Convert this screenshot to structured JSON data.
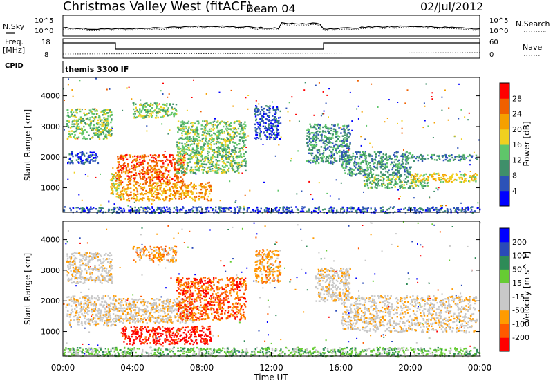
{
  "header": {
    "station": "Christmas Valley West (fitACF)",
    "beam": "Beam 04",
    "date": "02/Jul/2012"
  },
  "status_panels": {
    "nsky_label": "N.Sky",
    "nsky_ticks": [
      "10^5",
      "10^0"
    ],
    "nsearch_label": "N.Search",
    "nsearch_ticks": [
      "10^5",
      "10^0"
    ],
    "freq_label": "Freq.",
    "freq_unit": "[MHz]",
    "freq_ticks": [
      "18",
      "8"
    ],
    "nave_label": "Nave",
    "nave_ticks": [
      "60",
      "0"
    ],
    "cpid_label": "CPID",
    "cpid_value": "themis 3300 IF"
  },
  "colors": {
    "power": [
      "#0000ff",
      "#2c52b8",
      "#3f8f6a",
      "#5fc66a",
      "#f0d020",
      "#f5a000",
      "#f06000",
      "#ff0000"
    ],
    "velocity": [
      "#ff0000",
      "#ff5a00",
      "#ff9b00",
      "#c8c8c8",
      "#c8c8c8",
      "#66cc33",
      "#2e8b57",
      "#2a4ab8",
      "#0000ff"
    ]
  },
  "chart_data": [
    {
      "type": "heatmap",
      "name": "power",
      "xlabel": "",
      "ylabel": "Slant Range [km]",
      "x_range_hours": [
        0,
        24
      ],
      "ylim": [
        200,
        4600
      ],
      "yticks": [
        "1000",
        "2000",
        "3000",
        "4000"
      ],
      "colorbar_label": "Power [dB]",
      "colorbar_ticks": [
        "4",
        "8",
        "12",
        "16",
        "20",
        "24",
        "28"
      ],
      "bands": [
        {
          "t": [
            0.2,
            2.8
          ],
          "r": [
            2600,
            3600
          ],
          "level": 3
        },
        {
          "t": [
            0.2,
            2.0
          ],
          "r": [
            1800,
            2200
          ],
          "level": 1
        },
        {
          "t": [
            2.7,
            3.3
          ],
          "r": [
            700,
            1500
          ],
          "level": 4
        },
        {
          "t": [
            3.0,
            7.0
          ],
          "r": [
            1200,
            2100
          ],
          "level": 6
        },
        {
          "t": [
            3.2,
            8.5
          ],
          "r": [
            600,
            1200
          ],
          "level": 5
        },
        {
          "t": [
            4.0,
            6.5
          ],
          "r": [
            3300,
            3800
          ],
          "level": 3
        },
        {
          "t": [
            6.5,
            10.5
          ],
          "r": [
            1500,
            3200
          ],
          "level": 3
        },
        {
          "t": [
            11.0,
            12.5
          ],
          "r": [
            2600,
            3700
          ],
          "level": 1
        },
        {
          "t": [
            14.0,
            16.5
          ],
          "r": [
            1800,
            3100
          ],
          "level": 2
        },
        {
          "t": [
            16.0,
            20.0
          ],
          "r": [
            1400,
            2200
          ],
          "level": 2
        },
        {
          "t": [
            17.3,
            21.0
          ],
          "r": [
            1000,
            1400
          ],
          "level": 3
        },
        {
          "t": [
            20.0,
            23.8
          ],
          "r": [
            1900,
            2100
          ],
          "level": 2
        },
        {
          "t": [
            20.0,
            23.8
          ],
          "r": [
            1200,
            1500
          ],
          "level": 4
        },
        {
          "t": [
            0.0,
            24.0
          ],
          "r": [
            200,
            400
          ],
          "level": 1
        }
      ]
    },
    {
      "type": "heatmap",
      "name": "velocity",
      "xlabel": "Time UT",
      "ylabel": "Slant Range [km]",
      "x_range_hours": [
        0,
        24
      ],
      "xticks": [
        "00:00",
        "04:00",
        "08:00",
        "12:00",
        "16:00",
        "20:00",
        "00:00"
      ],
      "ylim": [
        200,
        4600
      ],
      "yticks": [
        "1000",
        "2000",
        "3000",
        "4000"
      ],
      "colorbar_label": "Velocity [m s^-1]",
      "colorbar_ticks": [
        "200",
        "100",
        "50",
        "15",
        "-15",
        "-50",
        "-100",
        "-200"
      ],
      "bands": [
        {
          "t": [
            0.2,
            2.8
          ],
          "r": [
            2600,
            3600
          ],
          "level": 3
        },
        {
          "t": [
            0.2,
            3.0
          ],
          "r": [
            1200,
            2200
          ],
          "level": 3
        },
        {
          "t": [
            3.0,
            7.5
          ],
          "r": [
            1300,
            2100
          ],
          "level": 3
        },
        {
          "t": [
            3.3,
            8.5
          ],
          "r": [
            600,
            1200
          ],
          "level": 0
        },
        {
          "t": [
            6.5,
            10.5
          ],
          "r": [
            1400,
            2800
          ],
          "level": 1
        },
        {
          "t": [
            4.0,
            6.5
          ],
          "r": [
            3300,
            3800
          ],
          "level": 2
        },
        {
          "t": [
            11.0,
            12.5
          ],
          "r": [
            2600,
            3700
          ],
          "level": 2
        },
        {
          "t": [
            14.5,
            16.5
          ],
          "r": [
            2000,
            3100
          ],
          "level": 3
        },
        {
          "t": [
            16.0,
            23.8
          ],
          "r": [
            1000,
            2200
          ],
          "level": 3
        },
        {
          "t": [
            0.0,
            24.0
          ],
          "r": [
            200,
            500
          ],
          "level": 5
        }
      ]
    }
  ]
}
